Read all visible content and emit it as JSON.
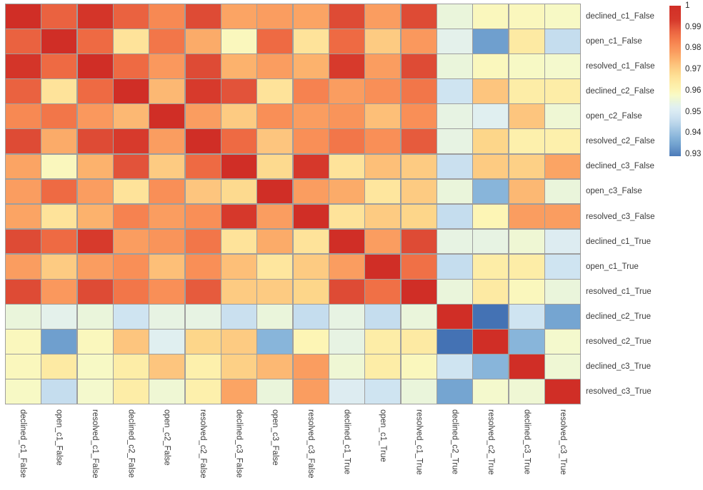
{
  "chart_data": {
    "type": "heatmap",
    "title": "",
    "legend_position": "right-colorbar",
    "grid_color": "#9e9e9e",
    "label_color": "#3b3b3b",
    "background": "#ffffff",
    "labels": [
      "declined_c1_False",
      "open_c1_False",
      "resolved_c1_False",
      "declined_c2_False",
      "open_c2_False",
      "resolved_c2_False",
      "declined_c3_False",
      "open_c3_False",
      "resolved_c3_False",
      "declined_c1_True",
      "open_c1_True",
      "resolved_c1_True",
      "declined_c2_True",
      "resolved_c2_True",
      "declined_c3_True",
      "resolved_c3_True"
    ],
    "matrix": [
      [
        1.0,
        0.988,
        0.996,
        0.988,
        0.982,
        0.991,
        0.977,
        0.978,
        0.977,
        0.991,
        0.978,
        0.991,
        0.955,
        0.959,
        0.959,
        0.958
      ],
      [
        0.988,
        1.0,
        0.987,
        0.966,
        0.985,
        0.976,
        0.959,
        0.987,
        0.966,
        0.987,
        0.971,
        0.979,
        0.953,
        0.934,
        0.964,
        0.946
      ],
      [
        0.996,
        0.987,
        1.0,
        0.987,
        0.979,
        0.991,
        0.975,
        0.978,
        0.975,
        0.993,
        0.978,
        0.991,
        0.955,
        0.959,
        0.958,
        0.957
      ],
      [
        0.988,
        0.966,
        0.987,
        1.0,
        0.974,
        0.993,
        0.99,
        0.966,
        0.983,
        0.978,
        0.981,
        0.985,
        0.948,
        0.972,
        0.963,
        0.963
      ],
      [
        0.982,
        0.985,
        0.979,
        0.974,
        1.0,
        0.978,
        0.971,
        0.981,
        0.978,
        0.98,
        0.973,
        0.981,
        0.954,
        0.952,
        0.972,
        0.956
      ],
      [
        0.991,
        0.976,
        0.991,
        0.993,
        0.978,
        1.0,
        0.987,
        0.972,
        0.981,
        0.985,
        0.981,
        0.989,
        0.954,
        0.969,
        0.962,
        0.962
      ],
      [
        0.977,
        0.959,
        0.975,
        0.99,
        0.971,
        0.987,
        1.0,
        0.968,
        0.994,
        0.966,
        0.973,
        0.971,
        0.947,
        0.971,
        0.97,
        0.977
      ],
      [
        0.978,
        0.987,
        0.978,
        0.966,
        0.981,
        0.972,
        0.968,
        1.0,
        0.978,
        0.976,
        0.965,
        0.971,
        0.955,
        0.938,
        0.974,
        0.955
      ],
      [
        0.977,
        0.966,
        0.975,
        0.983,
        0.978,
        0.981,
        0.994,
        0.978,
        1.0,
        0.966,
        0.971,
        0.969,
        0.946,
        0.96,
        0.978,
        0.978
      ],
      [
        0.991,
        0.987,
        0.993,
        0.978,
        0.98,
        0.985,
        0.966,
        0.976,
        0.966,
        1.0,
        0.978,
        0.991,
        0.954,
        0.954,
        0.956,
        0.951
      ],
      [
        0.978,
        0.971,
        0.978,
        0.981,
        0.973,
        0.981,
        0.973,
        0.965,
        0.971,
        0.978,
        1.0,
        0.986,
        0.946,
        0.963,
        0.963,
        0.948
      ],
      [
        0.991,
        0.979,
        0.991,
        0.985,
        0.981,
        0.989,
        0.971,
        0.971,
        0.969,
        0.991,
        0.986,
        1.0,
        0.955,
        0.964,
        0.959,
        0.955
      ],
      [
        0.955,
        0.953,
        0.955,
        0.948,
        0.954,
        0.954,
        0.947,
        0.955,
        0.946,
        0.954,
        0.946,
        0.955,
        1.0,
        0.928,
        0.948,
        0.935
      ],
      [
        0.959,
        0.934,
        0.959,
        0.972,
        0.952,
        0.969,
        0.971,
        0.938,
        0.96,
        0.954,
        0.963,
        0.964,
        0.928,
        1.0,
        0.938,
        0.957
      ],
      [
        0.959,
        0.964,
        0.958,
        0.963,
        0.972,
        0.962,
        0.97,
        0.974,
        0.978,
        0.956,
        0.963,
        0.959,
        0.948,
        0.938,
        1.0,
        0.956
      ],
      [
        0.958,
        0.946,
        0.957,
        0.963,
        0.956,
        0.962,
        0.977,
        0.955,
        0.978,
        0.951,
        0.948,
        0.955,
        0.935,
        0.957,
        0.956,
        1.0
      ]
    ],
    "colorbar": {
      "ticks": [
        {
          "label": "1",
          "value": 1.0
        },
        {
          "label": "0.99",
          "value": 0.99
        },
        {
          "label": "0.98",
          "value": 0.98
        },
        {
          "label": "0.97",
          "value": 0.97
        },
        {
          "label": "0.96",
          "value": 0.96
        },
        {
          "label": "0.95",
          "value": 0.95
        },
        {
          "label": "0.94",
          "value": 0.94
        },
        {
          "label": "0.93",
          "value": 0.93
        }
      ],
      "bar_min": 0.929,
      "bar_max": 1.0
    },
    "colormap": {
      "name": "RdYlBu_r",
      "anchors": [
        {
          "v": 0.928,
          "c": "#4472b4"
        },
        {
          "v": 0.934,
          "c": "#6f9fce"
        },
        {
          "v": 0.938,
          "c": "#88b5da"
        },
        {
          "v": 0.946,
          "c": "#c5ddee"
        },
        {
          "v": 0.95,
          "c": "#d9eaf3"
        },
        {
          "v": 0.9525,
          "c": "#e2f0ef"
        },
        {
          "v": 0.955,
          "c": "#eaf5db"
        },
        {
          "v": 0.9575,
          "c": "#f6fac9"
        },
        {
          "v": 0.96,
          "c": "#fdf5b5"
        },
        {
          "v": 0.963,
          "c": "#fdeda7"
        },
        {
          "v": 0.966,
          "c": "#fee39a"
        },
        {
          "v": 0.969,
          "c": "#fdd68a"
        },
        {
          "v": 0.972,
          "c": "#fdc57e"
        },
        {
          "v": 0.975,
          "c": "#fcb26d"
        },
        {
          "v": 0.978,
          "c": "#fa9d60"
        },
        {
          "v": 0.981,
          "c": "#f98f57"
        },
        {
          "v": 0.984,
          "c": "#f47c4c"
        },
        {
          "v": 0.987,
          "c": "#ee6a43"
        },
        {
          "v": 0.99,
          "c": "#e2533a"
        },
        {
          "v": 0.993,
          "c": "#d73a2c"
        },
        {
          "v": 1.0,
          "c": "#d02e26"
        }
      ]
    }
  }
}
